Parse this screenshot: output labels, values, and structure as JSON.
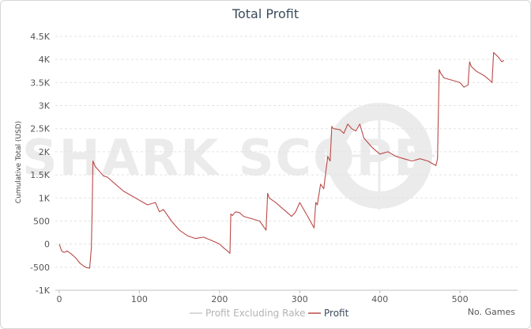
{
  "chart_data": {
    "type": "line",
    "title": "Total Profit",
    "xlabel": "No. Games",
    "ylabel": "Cumulative Total (USD)",
    "xlim": [
      0,
      560
    ],
    "ylim": [
      -1000,
      4500
    ],
    "x_ticks": [
      "0",
      "100",
      "200",
      "300",
      "400",
      "500"
    ],
    "x_tick_values": [
      0,
      100,
      200,
      300,
      400,
      500
    ],
    "y_ticks": [
      "-1K",
      "-500",
      "0",
      "500",
      "1K",
      "1.5K",
      "2K",
      "2.5K",
      "3K",
      "3.5K",
      "4K",
      "4.5K"
    ],
    "y_tick_values": [
      -1000,
      -500,
      0,
      500,
      1000,
      1500,
      2000,
      2500,
      3000,
      3500,
      4000,
      4500
    ],
    "grid": true,
    "legend_position": "bottom",
    "watermark": "SHARK SCOPE",
    "series": [
      {
        "name": "Profit Excluding Rake",
        "color": "#cccccc",
        "x": [],
        "y": []
      },
      {
        "name": "Profit",
        "color": "#b94a48",
        "x": [
          0,
          3,
          6,
          10,
          14,
          18,
          22,
          26,
          30,
          34,
          38,
          40,
          41,
          42,
          45,
          50,
          55,
          60,
          70,
          80,
          90,
          100,
          110,
          120,
          125,
          130,
          140,
          150,
          160,
          170,
          180,
          190,
          200,
          205,
          210,
          213,
          214,
          216,
          220,
          225,
          230,
          240,
          250,
          258,
          260,
          262,
          270,
          280,
          290,
          295,
          300,
          310,
          318,
          320,
          322,
          326,
          330,
          335,
          338,
          340,
          342,
          350,
          355,
          360,
          365,
          370,
          375,
          380,
          385,
          390,
          400,
          410,
          420,
          430,
          440,
          450,
          460,
          465,
          470,
          472,
          474,
          476,
          480,
          490,
          500,
          505,
          510,
          512,
          514,
          520,
          530,
          537,
          540,
          542,
          548,
          552,
          555
        ],
        "y": [
          0,
          -150,
          -180,
          -150,
          -200,
          -260,
          -330,
          -420,
          -470,
          -510,
          -520,
          -80,
          700,
          1800,
          1680,
          1580,
          1480,
          1450,
          1300,
          1150,
          1050,
          950,
          850,
          900,
          700,
          750,
          500,
          300,
          180,
          120,
          150,
          80,
          0,
          -80,
          -150,
          -200,
          650,
          620,
          700,
          680,
          600,
          550,
          500,
          300,
          1100,
          1000,
          900,
          750,
          600,
          700,
          900,
          600,
          350,
          900,
          850,
          1300,
          1200,
          1900,
          1800,
          2550,
          2500,
          2480,
          2400,
          2600,
          2500,
          2450,
          2600,
          2300,
          2200,
          2100,
          1950,
          2000,
          1900,
          1850,
          1800,
          1850,
          1800,
          1750,
          1700,
          1850,
          3780,
          3700,
          3600,
          3550,
          3500,
          3400,
          3450,
          3950,
          3850,
          3750,
          3650,
          3550,
          3500,
          4150,
          4050,
          3950,
          3980
        ]
      }
    ]
  }
}
